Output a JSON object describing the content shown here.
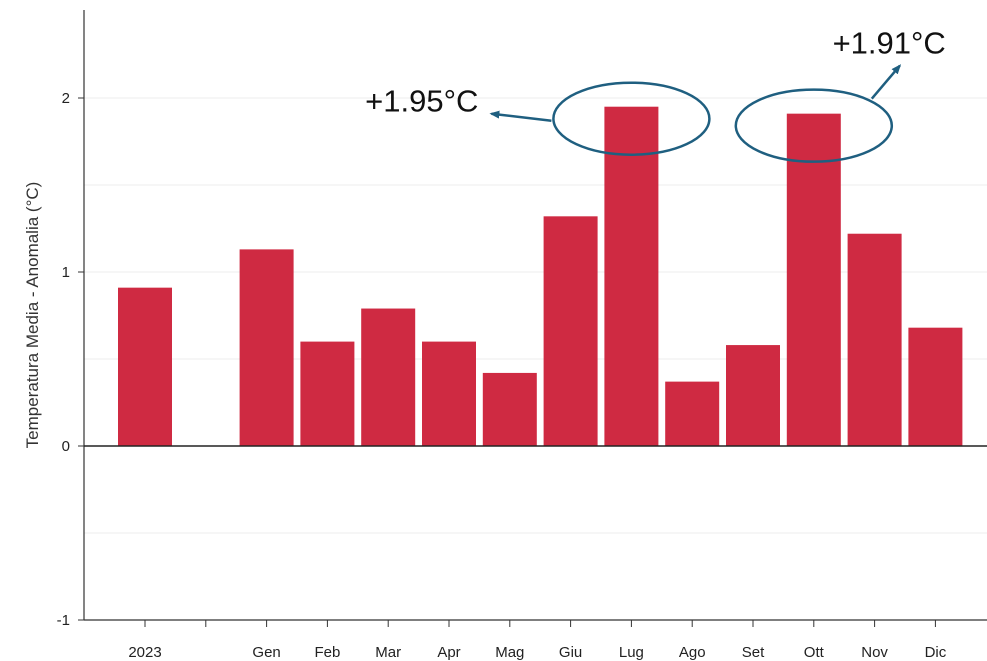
{
  "chart_data": {
    "type": "bar",
    "categories": [
      "2023",
      "",
      "Gen",
      "Feb",
      "Mar",
      "Apr",
      "Mag",
      "Giu",
      "Lug",
      "Ago",
      "Set",
      "Ott",
      "Nov",
      "Dic"
    ],
    "values": [
      0.91,
      null,
      1.13,
      0.6,
      0.79,
      0.6,
      0.42,
      1.32,
      1.95,
      0.37,
      0.58,
      1.91,
      1.22,
      0.68
    ],
    "title": "",
    "xlabel": "",
    "ylabel": "Temperatura Media - Anomalia  (°C)",
    "ylim": [
      -1,
      2.5
    ],
    "yticks": [
      {
        "value": 2,
        "label": "2"
      },
      {
        "value": 1,
        "label": "1"
      },
      {
        "value": 0,
        "label": "0"
      },
      {
        "value": -1,
        "label": "-1"
      }
    ],
    "grid": true,
    "bar_color": "#cf2a42",
    "annotations": [
      {
        "text": "+1.95°C",
        "category": "Lug"
      },
      {
        "text": "+1.91°C",
        "category": "Ott"
      }
    ],
    "annotation_color": "#1f5f80"
  }
}
